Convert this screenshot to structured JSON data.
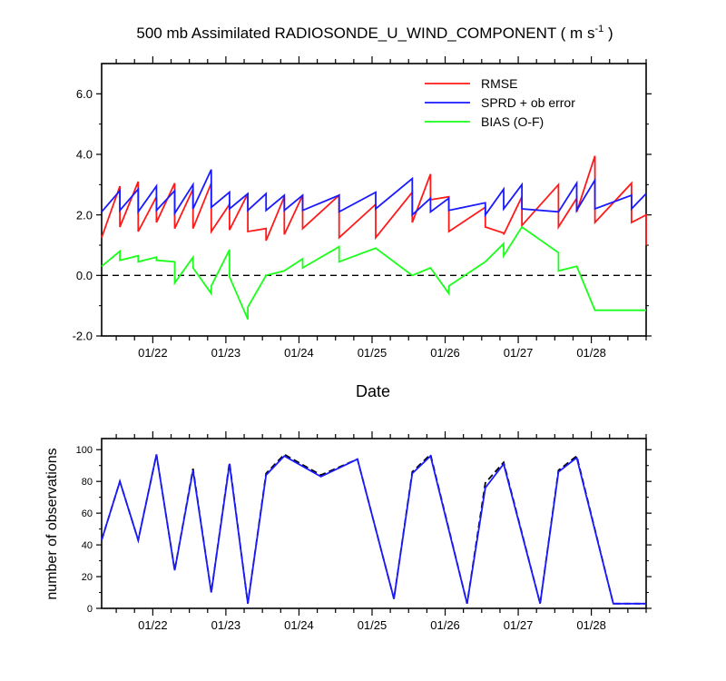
{
  "title": {
    "main": "500 mb Assimilated RADIOSONDE_U_WIND_COMPONENT ( m s",
    "sup": "-1",
    "close": " )"
  },
  "colors": {
    "rmse": "#ff1a1a",
    "sprd": "#1a1aff",
    "bias": "#1aff1a",
    "obs_used": "#1a1aff",
    "obs_possible": "#000000",
    "axis": "#000000"
  },
  "chart_data": [
    {
      "type": "line",
      "title": "500 mb Assimilated RADIOSONDE_U_WIND_COMPONENT ( m s-1 )",
      "xlabel": "Date",
      "ylabel": "",
      "x_unit": "days (Jan)",
      "xlim": [
        21.3,
        28.75
      ],
      "ylim": [
        -2.0,
        7.0
      ],
      "yticks": [
        -2.0,
        0.0,
        2.0,
        4.0,
        6.0
      ],
      "ytick_labels": [
        "-2.0",
        "0.0",
        "2.0",
        "4.0",
        "6.0"
      ],
      "xticks": [
        22,
        23,
        24,
        25,
        26,
        27,
        28
      ],
      "xtick_labels": [
        "01/22",
        "01/23",
        "01/24",
        "01/25",
        "01/26",
        "01/27",
        "01/28"
      ],
      "legend_position": "top-right",
      "zero_line": "dashed",
      "series": [
        {
          "name": "RMSE",
          "color_key": "rmse",
          "x": [
            21.3,
            21.55,
            21.55,
            21.8,
            21.8,
            22.05,
            22.05,
            22.3,
            22.3,
            22.55,
            22.55,
            22.8,
            22.8,
            23.05,
            23.05,
            23.3,
            23.3,
            23.55,
            23.55,
            23.8,
            23.8,
            24.05,
            24.05,
            24.55,
            24.55,
            25.05,
            25.05,
            25.55,
            25.55,
            25.8,
            25.8,
            26.05,
            26.05,
            26.55,
            26.55,
            26.8,
            26.8,
            27.05,
            27.05,
            27.55,
            27.55,
            27.8,
            27.8,
            28.05,
            28.05,
            28.55,
            28.55,
            28.75,
            28.75
          ],
          "y": [
            1.25,
            2.95,
            1.6,
            3.1,
            1.45,
            2.6,
            1.75,
            3.05,
            1.55,
            2.85,
            1.55,
            3.05,
            1.45,
            2.35,
            1.5,
            2.7,
            1.45,
            1.55,
            1.15,
            2.6,
            1.35,
            2.65,
            1.55,
            2.65,
            1.25,
            2.35,
            1.25,
            2.75,
            1.75,
            3.35,
            2.5,
            2.6,
            1.45,
            2.25,
            1.6,
            1.4,
            1.35,
            2.6,
            1.65,
            3.0,
            1.6,
            2.55,
            2.1,
            3.95,
            1.75,
            3.05,
            1.75,
            2.0,
            1.0
          ]
        },
        {
          "name": "SPRD + ob error",
          "color_key": "sprd",
          "x": [
            21.3,
            21.55,
            21.55,
            21.8,
            21.8,
            22.05,
            22.05,
            22.3,
            22.3,
            22.55,
            22.55,
            22.8,
            22.8,
            23.05,
            23.05,
            23.3,
            23.3,
            23.55,
            23.55,
            23.8,
            23.8,
            24.05,
            24.05,
            24.55,
            24.55,
            25.05,
            25.05,
            25.55,
            25.55,
            25.8,
            25.8,
            26.05,
            26.05,
            26.55,
            26.55,
            26.8,
            26.8,
            27.05,
            27.05,
            27.55,
            27.55,
            27.8,
            27.8,
            28.05,
            28.05,
            28.55,
            28.55,
            28.75
          ],
          "y": [
            2.1,
            2.8,
            2.15,
            2.85,
            2.1,
            2.95,
            2.15,
            2.8,
            2.05,
            3.0,
            2.2,
            3.5,
            2.25,
            2.75,
            2.2,
            2.7,
            2.15,
            2.7,
            2.15,
            2.65,
            2.15,
            2.65,
            2.15,
            2.65,
            2.1,
            2.75,
            2.2,
            3.2,
            2.0,
            2.55,
            2.1,
            2.55,
            2.15,
            2.4,
            2.0,
            2.85,
            2.2,
            3.0,
            2.2,
            2.1,
            2.1,
            3.05,
            2.15,
            3.15,
            2.2,
            2.65,
            2.2,
            2.7
          ]
        },
        {
          "name": "BIAS (O-F)",
          "color_key": "bias",
          "x": [
            21.3,
            21.55,
            21.55,
            21.8,
            21.8,
            22.05,
            22.05,
            22.3,
            22.3,
            22.55,
            22.55,
            22.8,
            22.8,
            23.05,
            23.05,
            23.3,
            23.3,
            23.55,
            23.55,
            23.8,
            23.8,
            24.05,
            24.05,
            24.55,
            24.55,
            25.05,
            25.05,
            25.55,
            25.55,
            25.8,
            25.8,
            26.05,
            26.05,
            26.55,
            26.55,
            26.8,
            26.8,
            27.05,
            27.05,
            27.55,
            27.55,
            27.8,
            27.8,
            28.05,
            28.05,
            28.55,
            28.55,
            28.75
          ],
          "y": [
            0.3,
            0.8,
            0.5,
            0.65,
            0.45,
            0.6,
            0.5,
            0.45,
            -0.25,
            0.6,
            0.25,
            -0.6,
            -0.35,
            0.85,
            -0.05,
            -1.45,
            -1.05,
            0.0,
            0.0,
            0.15,
            0.15,
            0.55,
            0.25,
            0.95,
            0.45,
            0.9,
            0.9,
            0.0,
            0.0,
            0.25,
            0.25,
            -0.6,
            -0.35,
            0.45,
            0.45,
            1.05,
            0.65,
            1.6,
            1.6,
            0.75,
            0.15,
            0.3,
            0.3,
            -1.15,
            -1.15,
            -1.15,
            -1.15,
            -1.15
          ]
        }
      ]
    },
    {
      "type": "line",
      "title": "",
      "xlabel": "",
      "ylabel": "number of observations",
      "xlim": [
        21.3,
        28.75
      ],
      "ylim": [
        0,
        107
      ],
      "yticks": [
        0,
        20,
        40,
        60,
        80,
        100
      ],
      "ytick_labels": [
        "0",
        "20",
        "40",
        "60",
        "80",
        "100"
      ],
      "xticks": [
        22,
        23,
        24,
        25,
        26,
        27,
        28
      ],
      "xtick_labels": [
        "01/22",
        "01/23",
        "01/24",
        "01/25",
        "01/26",
        "01/27",
        "01/28"
      ],
      "series": [
        {
          "color_key": "obs_possible",
          "dash": "dashed",
          "x": [
            21.3,
            21.55,
            21.8,
            22.05,
            22.3,
            22.55,
            22.8,
            23.05,
            23.3,
            23.55,
            23.8,
            24.3,
            24.8,
            25.3,
            25.55,
            25.8,
            26.3,
            26.55,
            26.8,
            27.3,
            27.55,
            27.8,
            28.3,
            28.75
          ],
          "y": [
            43,
            80,
            43,
            97,
            24,
            88,
            10,
            92,
            3,
            85,
            97,
            84,
            94,
            6,
            86,
            97,
            3,
            79,
            92,
            3,
            87,
            96,
            3,
            3
          ]
        },
        {
          "color_key": "obs_used",
          "dash": "solid",
          "x": [
            21.3,
            21.55,
            21.8,
            22.05,
            22.3,
            22.55,
            22.8,
            23.05,
            23.3,
            23.55,
            23.8,
            24.3,
            24.8,
            25.3,
            25.55,
            25.8,
            26.3,
            26.55,
            26.8,
            27.3,
            27.55,
            27.8,
            28.3,
            28.75
          ],
          "y": [
            43,
            80,
            43,
            97,
            24,
            87,
            10,
            91,
            3,
            84,
            96,
            83,
            94,
            6,
            85,
            96,
            3,
            76,
            91,
            3,
            86,
            95,
            3,
            3
          ]
        }
      ]
    }
  ]
}
